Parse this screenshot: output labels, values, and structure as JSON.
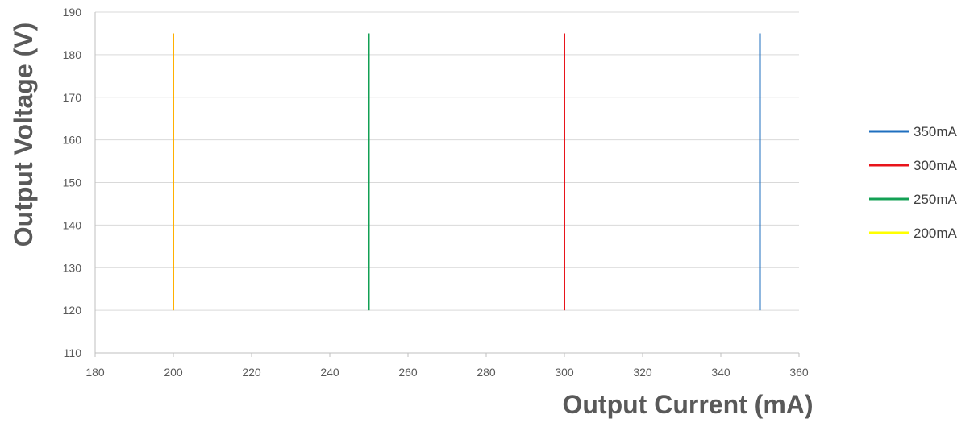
{
  "chart_data": {
    "type": "line",
    "xlabel": "Output Current (mA)",
    "ylabel": "Output Voltage (V)",
    "xlim": [
      180,
      360
    ],
    "ylim": [
      110,
      190
    ],
    "x_ticks": [
      "180",
      "200",
      "220",
      "240",
      "260",
      "280",
      "300",
      "320",
      "340",
      "360"
    ],
    "y_ticks": [
      "110",
      "120",
      "130",
      "140",
      "150",
      "160",
      "170",
      "180",
      "190"
    ],
    "grid": "horizontal",
    "legend_position": "right",
    "series": [
      {
        "name": "350mA",
        "color": "#1f6fbf",
        "points": [
          [
            350,
            120
          ],
          [
            350,
            185
          ]
        ]
      },
      {
        "name": "300mA",
        "color": "#e8141b",
        "points": [
          [
            300,
            120
          ],
          [
            300,
            185
          ]
        ]
      },
      {
        "name": "250mA",
        "color": "#13a054",
        "points": [
          [
            250,
            120
          ],
          [
            250,
            185
          ]
        ]
      },
      {
        "name": "200mA",
        "color": "#ffb000",
        "legend_color": "#ffff00",
        "points": [
          [
            200,
            120
          ],
          [
            200,
            185
          ]
        ]
      }
    ]
  }
}
